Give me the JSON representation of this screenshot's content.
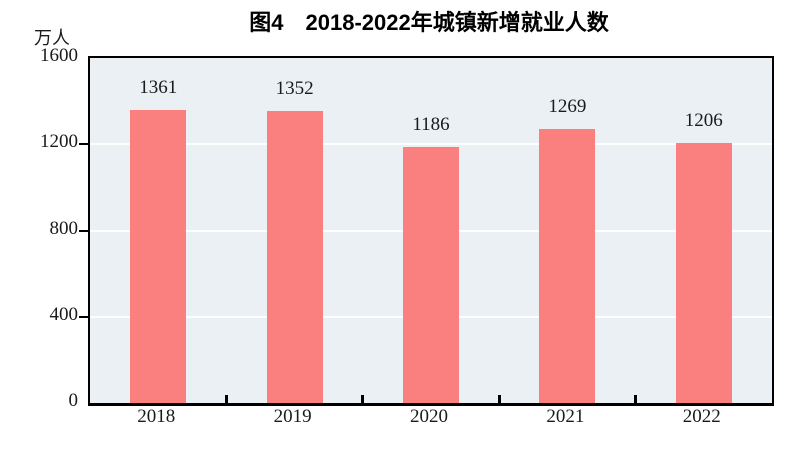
{
  "chart_data": {
    "type": "bar",
    "title": "图4　2018-2022年城镇新增就业人数",
    "unit_label": "万人",
    "categories": [
      "2018",
      "2019",
      "2020",
      "2021",
      "2022"
    ],
    "values": [
      1361,
      1352,
      1186,
      1269,
      1206
    ],
    "ylabel": "万人",
    "xlabel": "",
    "ylim": [
      0,
      1600
    ],
    "yticks": [
      0,
      400,
      800,
      1200,
      1600
    ],
    "grid": "horizontal-white-lines",
    "legend": "none",
    "colors": {
      "bar": "#FA8080",
      "plot_background": "#EAF0F3",
      "frame": "#000000",
      "gridline": "#FFFFFF",
      "text": "#1a1a1a"
    }
  }
}
